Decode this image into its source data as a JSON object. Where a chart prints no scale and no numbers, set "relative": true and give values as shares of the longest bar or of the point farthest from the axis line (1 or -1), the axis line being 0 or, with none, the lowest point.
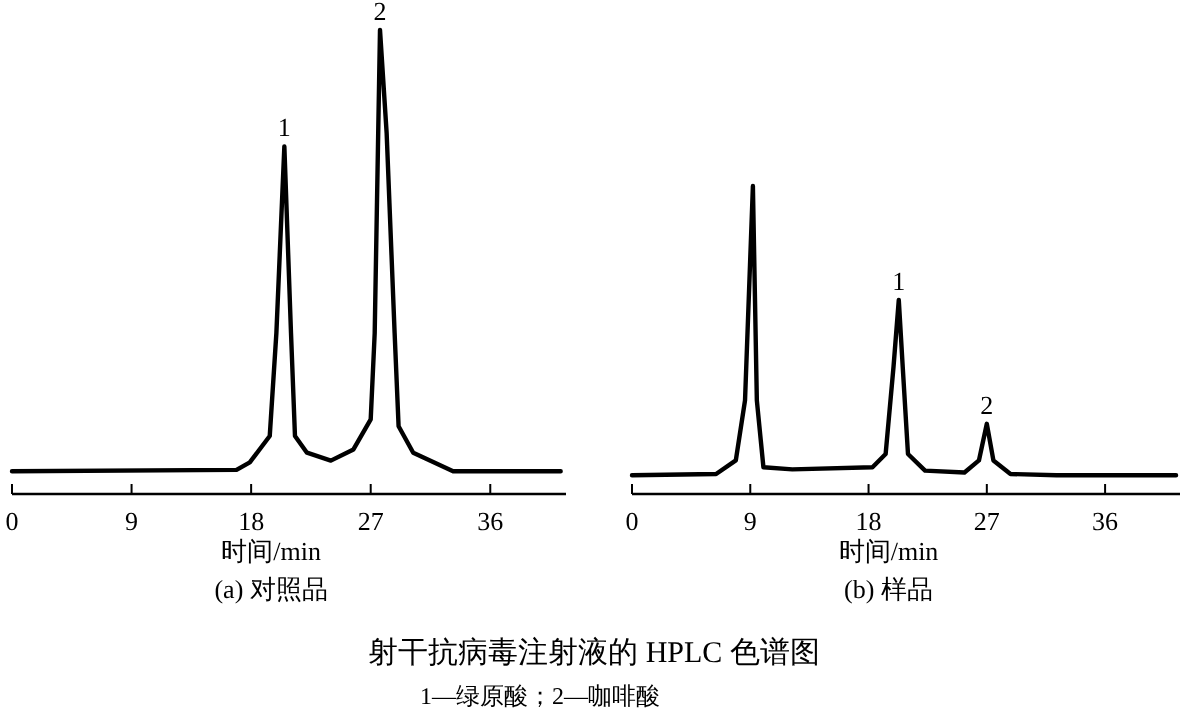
{
  "chart_data": [
    {
      "type": "line",
      "relative": true,
      "title": "(a) 对照品",
      "xlabel": "时间/min",
      "xlim": [
        0,
        41.7
      ],
      "xticks": [
        0,
        9,
        18,
        27,
        36
      ],
      "color": "#000000",
      "x": [
        0,
        16.9,
        17.9,
        19.4,
        19.9,
        20.5,
        21.0,
        21.3,
        22.2,
        24.0,
        25.7,
        27.0,
        27.3,
        27.7,
        28.2,
        28.8,
        29.1,
        30.2,
        33.2,
        41.3
      ],
      "values": [
        0.049,
        0.052,
        0.068,
        0.125,
        0.347,
        0.749,
        0.347,
        0.125,
        0.089,
        0.072,
        0.096,
        0.161,
        0.347,
        1.0,
        0.778,
        0.347,
        0.146,
        0.089,
        0.049,
        0.049
      ],
      "annotations": [
        {
          "text": "1",
          "x": 20.5,
          "y": 0.749
        },
        {
          "text": "2",
          "x": 27.7,
          "y": 1.0
        }
      ]
    },
    {
      "type": "line",
      "relative": true,
      "title": "(b) 样品",
      "xlabel": "时间/min",
      "xlim": [
        0,
        41.7
      ],
      "xticks": [
        0,
        9,
        18,
        27,
        36
      ],
      "color": "#000000",
      "x": [
        0,
        6.4,
        7.9,
        8.6,
        9.2,
        9.5,
        10.0,
        12.2,
        18.3,
        19.3,
        19.9,
        20.3,
        20.6,
        21.0,
        22.3,
        25.3,
        26.4,
        27.0,
        27.5,
        28.8,
        32.3,
        41.4
      ],
      "values": [
        0.061,
        0.065,
        0.109,
        0.304,
        1.0,
        0.304,
        0.087,
        0.08,
        0.087,
        0.13,
        0.413,
        0.63,
        0.413,
        0.13,
        0.076,
        0.07,
        0.109,
        0.228,
        0.109,
        0.065,
        0.061,
        0.061
      ],
      "annotations": [
        {
          "text": "1",
          "x": 20.3,
          "y": 0.63
        },
        {
          "text": "2",
          "x": 27.0,
          "y": 0.228
        }
      ]
    },
    {
      "type": "other",
      "title": "射干抗病毒注射液的 HPLC 色谱图",
      "annotations": [
        "1—绿原酸；2—咖啡酸"
      ]
    }
  ]
}
